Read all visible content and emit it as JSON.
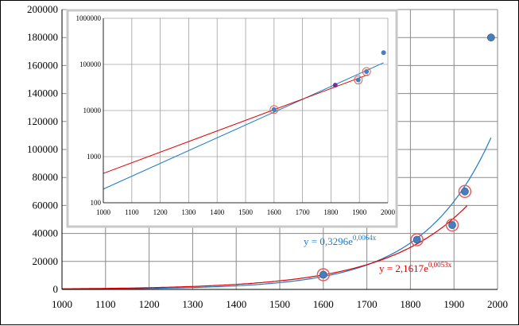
{
  "chart_data": [
    {
      "type": "scatter",
      "title": "",
      "xlabel": "",
      "ylabel": "",
      "xlim": [
        1000,
        2000
      ],
      "ylim": [
        0,
        200000
      ],
      "x_ticks": [
        1000,
        1100,
        1200,
        1300,
        1400,
        1500,
        1600,
        1700,
        1800,
        1900,
        2000
      ],
      "y_ticks": [
        0,
        20000,
        40000,
        60000,
        80000,
        100000,
        120000,
        140000,
        160000,
        180000,
        200000
      ],
      "grid": true,
      "colors": {
        "points": "#4a7ebb",
        "fit_exp1": "#1f7ac8",
        "fit_exp2": "#e00000",
        "circle": "#e06060"
      },
      "points": [
        {
          "x": 1600,
          "y": 10500,
          "circled": true
        },
        {
          "x": 1815,
          "y": 35500,
          "circled": true
        },
        {
          "x": 1896,
          "y": 46000,
          "circled": true
        },
        {
          "x": 1925,
          "y": 70000,
          "circled": true
        },
        {
          "x": 1985,
          "y": 180000,
          "circled": false
        }
      ],
      "trendlines": [
        {
          "label": "y = 0,3296e",
          "exponent": "0,0064x",
          "a": 0.3296,
          "b": 0.0064,
          "x_range": [
            1000,
            1985
          ],
          "color": "#1f7ac8"
        },
        {
          "label": "y = 2,1617e",
          "exponent": "0,0053x",
          "a": 2.1617,
          "b": 0.0053,
          "x_range": [
            1000,
            1930
          ],
          "color": "#e00000"
        }
      ]
    },
    {
      "type": "scatter",
      "title": "",
      "xlabel": "",
      "ylabel": "",
      "xlim": [
        1000,
        2000
      ],
      "ylim": [
        100,
        1000000
      ],
      "log_y": true,
      "x_ticks": [
        1000,
        1100,
        1200,
        1300,
        1400,
        1500,
        1600,
        1700,
        1800,
        1900,
        2000
      ],
      "y_ticks": [
        100,
        1000,
        10000,
        100000,
        1000000
      ],
      "grid": true,
      "points": [
        {
          "x": 1600,
          "y": 10500,
          "circled": true,
          "color": "#4a7ebb"
        },
        {
          "x": 1815,
          "y": 35500,
          "circled": false,
          "color": "#7030a0"
        },
        {
          "x": 1896,
          "y": 46000,
          "circled": true,
          "color": "#4a7ebb"
        },
        {
          "x": 1925,
          "y": 70000,
          "circled": true,
          "color": "#4a7ebb"
        },
        {
          "x": 1985,
          "y": 180000,
          "circled": false,
          "color": "#4a7ebb"
        }
      ],
      "trendlines": [
        {
          "a": 0.3296,
          "b": 0.0064,
          "x_range": [
            1000,
            1985
          ],
          "color": "#1f7ac8"
        },
        {
          "a": 2.1617,
          "b": 0.0053,
          "x_range": [
            1000,
            1930
          ],
          "color": "#e00000"
        }
      ]
    }
  ]
}
